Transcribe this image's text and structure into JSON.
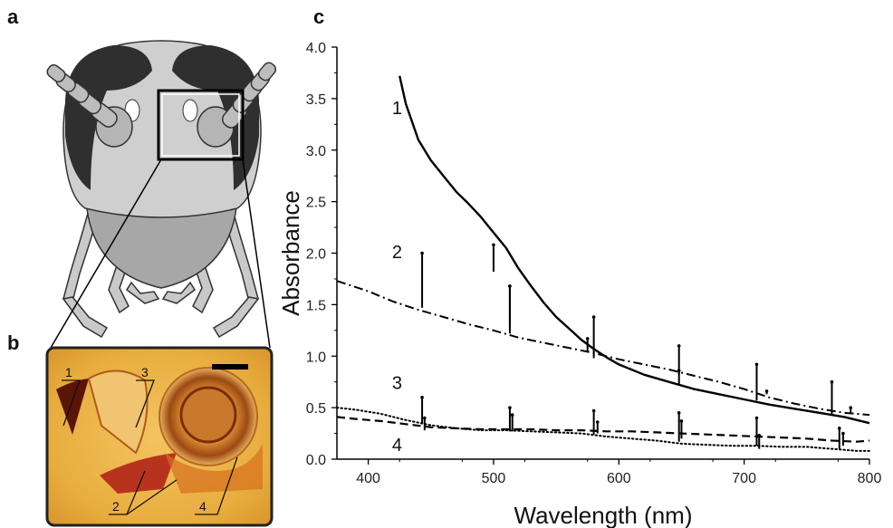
{
  "panels": {
    "a": "a",
    "b": "b",
    "c": "c"
  },
  "photo_labels": [
    "1",
    "2",
    "3",
    "4"
  ],
  "chart_data": {
    "type": "line",
    "xlabel": "Wavelength (nm)",
    "ylabel": "Absorbance",
    "xlim": [
      375,
      800
    ],
    "ylim": [
      0.0,
      4.0
    ],
    "xticks": [
      400,
      500,
      600,
      700,
      800
    ],
    "yticks": [
      0.0,
      0.5,
      1.0,
      1.5,
      2.0,
      2.5,
      3.0,
      3.5,
      4.0
    ],
    "ytick_labels": [
      "0.0",
      "0.5",
      "1.0",
      "1.5",
      "2.0",
      "2.5",
      "3.0",
      "3.5",
      "4.0"
    ],
    "series": [
      {
        "name": "1",
        "style": "solid",
        "points": [
          [
            425,
            3.72
          ],
          [
            430,
            3.45
          ],
          [
            440,
            3.1
          ],
          [
            450,
            2.9
          ],
          [
            460,
            2.75
          ],
          [
            470,
            2.6
          ],
          [
            480,
            2.48
          ],
          [
            490,
            2.35
          ],
          [
            500,
            2.2
          ],
          [
            510,
            2.05
          ],
          [
            520,
            1.85
          ],
          [
            530,
            1.68
          ],
          [
            540,
            1.52
          ],
          [
            550,
            1.38
          ],
          [
            560,
            1.27
          ],
          [
            570,
            1.16
          ],
          [
            580,
            1.07
          ],
          [
            590,
            0.99
          ],
          [
            600,
            0.92
          ],
          [
            620,
            0.82
          ],
          [
            640,
            0.75
          ],
          [
            660,
            0.68
          ],
          [
            680,
            0.63
          ],
          [
            700,
            0.58
          ],
          [
            720,
            0.53
          ],
          [
            740,
            0.49
          ],
          [
            760,
            0.45
          ],
          [
            780,
            0.41
          ],
          [
            800,
            0.35
          ]
        ],
        "errorbars": [
          [
            500,
            1.82,
            2.08
          ],
          [
            513,
            1.3,
            1.68
          ],
          [
            580,
            0.98,
            1.38
          ],
          [
            648,
            0.72,
            1.1
          ],
          [
            710,
            0.57,
            0.92
          ],
          [
            770,
            0.44,
            0.75
          ]
        ]
      },
      {
        "name": "2",
        "style": "dashdot",
        "points": [
          [
            375,
            1.73
          ],
          [
            400,
            1.63
          ],
          [
            420,
            1.53
          ],
          [
            440,
            1.45
          ],
          [
            460,
            1.38
          ],
          [
            480,
            1.31
          ],
          [
            500,
            1.25
          ],
          [
            520,
            1.18
          ],
          [
            540,
            1.13
          ],
          [
            560,
            1.08
          ],
          [
            580,
            1.03
          ],
          [
            600,
            0.97
          ],
          [
            620,
            0.92
          ],
          [
            640,
            0.87
          ],
          [
            660,
            0.81
          ],
          [
            680,
            0.75
          ],
          [
            700,
            0.68
          ],
          [
            720,
            0.6
          ],
          [
            740,
            0.54
          ],
          [
            760,
            0.49
          ],
          [
            780,
            0.45
          ],
          [
            800,
            0.43
          ]
        ],
        "errorbars": [
          [
            443,
            1.47,
            2.0
          ],
          [
            513,
            1.22,
            1.68
          ],
          [
            575,
            1.05,
            1.17
          ],
          [
            648,
            0.82,
            0.86
          ],
          [
            718,
            0.63,
            0.66
          ],
          [
            785,
            0.45,
            0.5
          ]
        ]
      },
      {
        "name": "3",
        "style": "dotted",
        "points": [
          [
            375,
            0.5
          ],
          [
            390,
            0.48
          ],
          [
            410,
            0.44
          ],
          [
            430,
            0.38
          ],
          [
            450,
            0.33
          ],
          [
            470,
            0.3
          ],
          [
            490,
            0.28
          ],
          [
            510,
            0.28
          ],
          [
            530,
            0.27
          ],
          [
            550,
            0.26
          ],
          [
            570,
            0.25
          ],
          [
            590,
            0.22
          ],
          [
            610,
            0.2
          ],
          [
            630,
            0.18
          ],
          [
            650,
            0.15
          ],
          [
            670,
            0.14
          ],
          [
            690,
            0.13
          ],
          [
            710,
            0.13
          ],
          [
            730,
            0.12
          ],
          [
            750,
            0.12
          ],
          [
            770,
            0.1
          ],
          [
            790,
            0.08
          ],
          [
            800,
            0.08
          ]
        ],
        "errorbars": [
          [
            443,
            0.34,
            0.6
          ],
          [
            513,
            0.27,
            0.5
          ],
          [
            580,
            0.24,
            0.47
          ],
          [
            648,
            0.17,
            0.45
          ],
          [
            710,
            0.13,
            0.4
          ],
          [
            776,
            0.1,
            0.3
          ]
        ]
      },
      {
        "name": "4",
        "style": "dashed",
        "points": [
          [
            375,
            0.41
          ],
          [
            390,
            0.39
          ],
          [
            410,
            0.37
          ],
          [
            430,
            0.34
          ],
          [
            450,
            0.31
          ],
          [
            470,
            0.3
          ],
          [
            490,
            0.29
          ],
          [
            510,
            0.29
          ],
          [
            530,
            0.29
          ],
          [
            550,
            0.28
          ],
          [
            570,
            0.28
          ],
          [
            590,
            0.27
          ],
          [
            610,
            0.27
          ],
          [
            630,
            0.26
          ],
          [
            650,
            0.25
          ],
          [
            670,
            0.24
          ],
          [
            690,
            0.23
          ],
          [
            710,
            0.22
          ],
          [
            730,
            0.21
          ],
          [
            750,
            0.2
          ],
          [
            770,
            0.18
          ],
          [
            790,
            0.17
          ],
          [
            800,
            0.18
          ]
        ],
        "errorbars": [
          [
            445,
            0.28,
            0.4
          ],
          [
            515,
            0.27,
            0.43
          ],
          [
            583,
            0.25,
            0.36
          ],
          [
            650,
            0.2,
            0.37
          ],
          [
            712,
            0.1,
            0.23
          ],
          [
            779,
            0.13,
            0.25
          ]
        ]
      }
    ],
    "curve_labels": [
      {
        "text": "1",
        "x": 423,
        "y": 3.35
      },
      {
        "text": "2",
        "x": 423,
        "y": 1.95
      },
      {
        "text": "3",
        "x": 423,
        "y": 0.68
      },
      {
        "text": "4",
        "x": 423,
        "y": 0.08
      }
    ]
  }
}
